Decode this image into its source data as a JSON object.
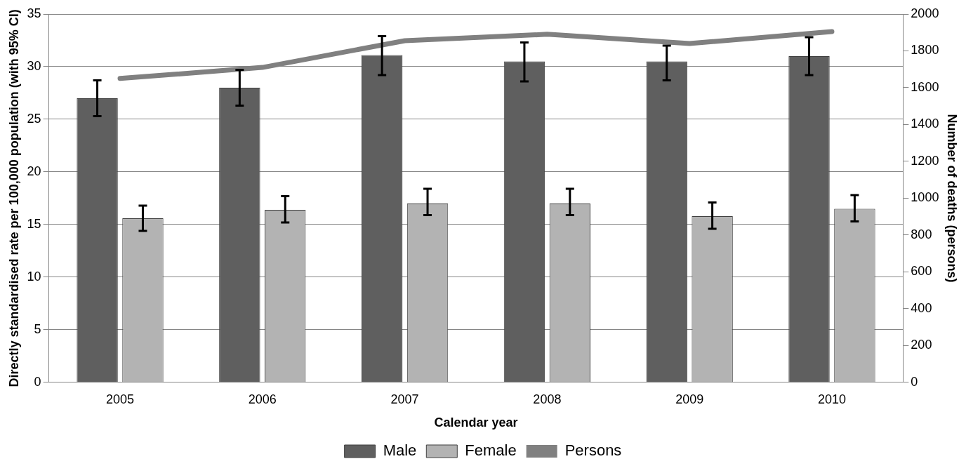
{
  "chart_data": {
    "type": "bar",
    "xlabel": "Calendar year",
    "ylabel": "Directly standardised rate per 100,000 population (with 95% CI)",
    "y2label": "Number of deaths (persons)",
    "categories": [
      "2005",
      "2006",
      "2007",
      "2008",
      "2009",
      "2010"
    ],
    "series": [
      {
        "name": "Male",
        "color": "#5f5f5f",
        "values": [
          27.0,
          28.0,
          31.1,
          30.5,
          30.5,
          31.0
        ],
        "errors": [
          [
            25.3,
            28.7
          ],
          [
            26.3,
            29.7
          ],
          [
            29.2,
            32.9
          ],
          [
            28.6,
            32.3
          ],
          [
            28.7,
            32.0
          ],
          [
            29.2,
            32.8
          ]
        ]
      },
      {
        "name": "Female",
        "color": "#b3b3b3",
        "values": [
          15.6,
          16.4,
          17.0,
          17.0,
          15.8,
          16.5
        ],
        "errors": [
          [
            14.4,
            16.8
          ],
          [
            15.2,
            17.7
          ],
          [
            15.9,
            18.4
          ],
          [
            15.9,
            18.4
          ],
          [
            14.6,
            17.1
          ],
          [
            15.3,
            17.8
          ]
        ]
      },
      {
        "name": "Persons",
        "type": "line",
        "axis": "y2",
        "color": "#808080",
        "values": [
          1650,
          1710,
          1855,
          1890,
          1840,
          1905
        ]
      }
    ],
    "ylim": [
      0,
      35
    ],
    "yticks": [
      0,
      5,
      10,
      15,
      20,
      25,
      30,
      35
    ],
    "y2lim": [
      0,
      2000
    ],
    "y2ticks": [
      0,
      200,
      400,
      600,
      800,
      1000,
      1200,
      1400,
      1600,
      1800,
      2000
    ],
    "grid": "y",
    "legend": "bottom",
    "marker": "none",
    "line_style": "solid"
  }
}
